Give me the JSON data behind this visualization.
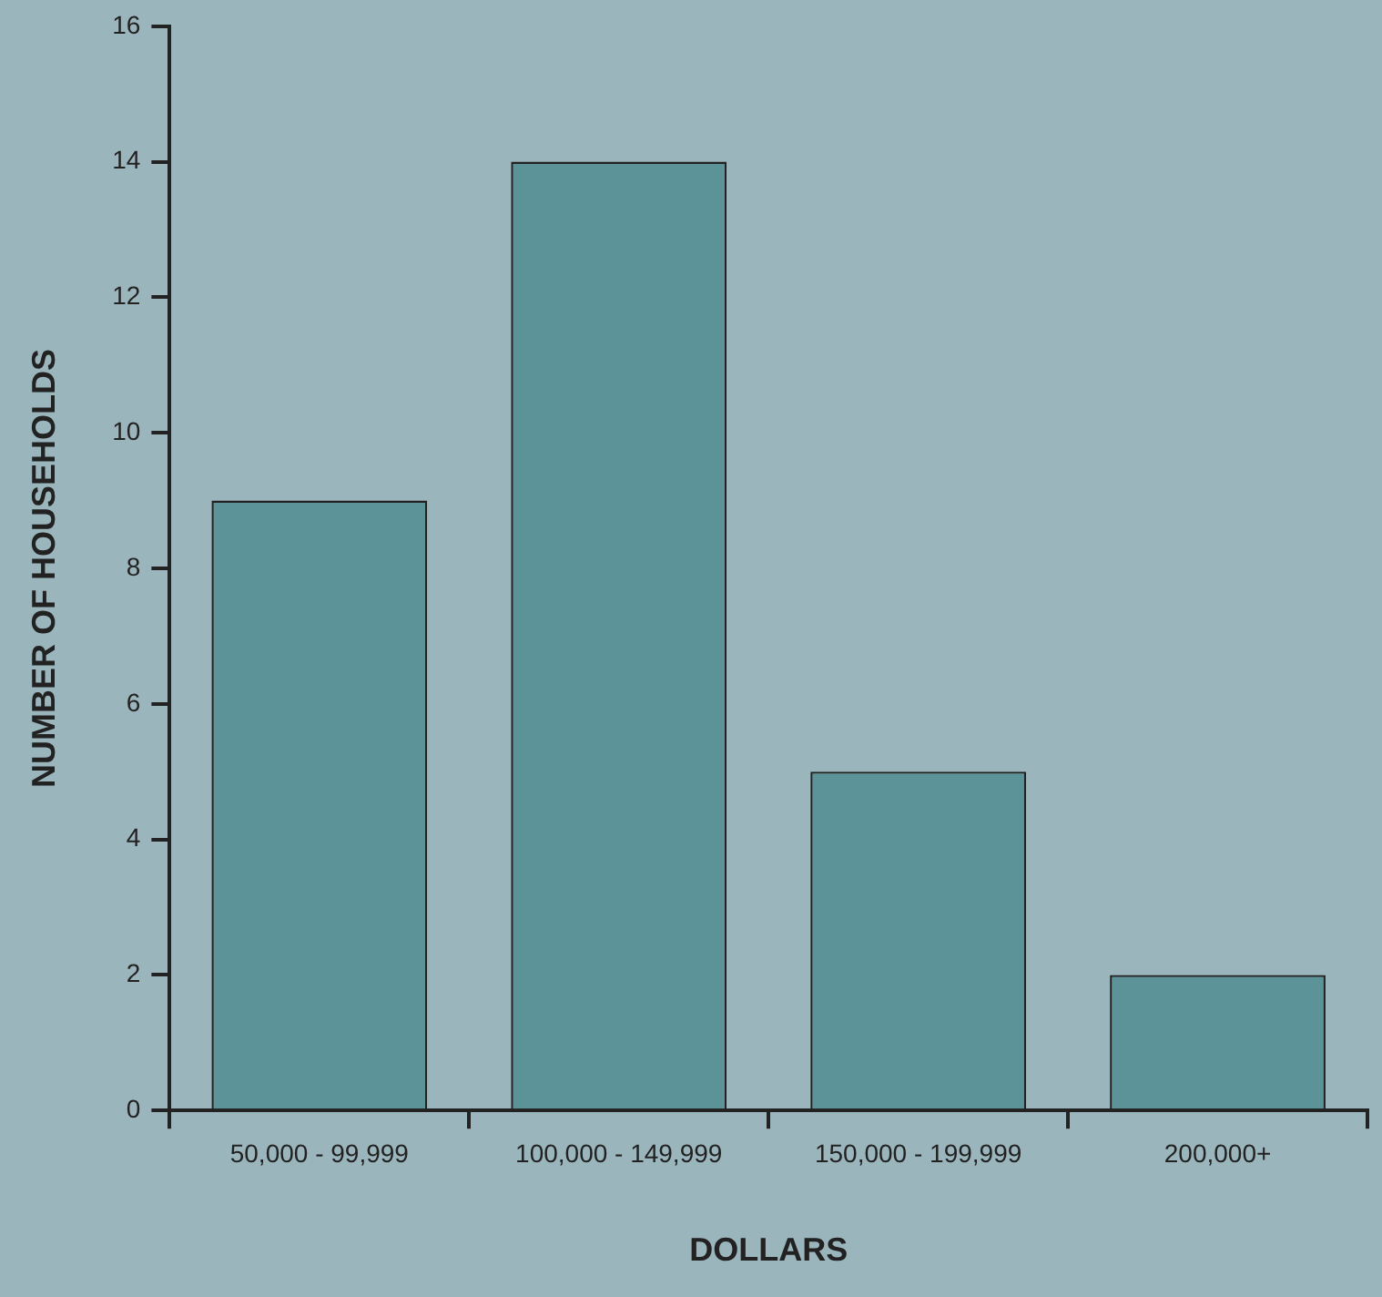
{
  "chart_data": {
    "type": "bar",
    "xlabel": "DOLLARS",
    "ylabel": "NUMBER OF HOUSEHOLDS",
    "categories": [
      "50,000 - 99,999",
      "100,000 - 149,999",
      "150,000 - 199,999",
      "200,000+"
    ],
    "values": [
      9,
      14,
      5,
      2
    ],
    "color": "#5b9399",
    "ylim": [
      0,
      16
    ],
    "yticks": [
      0,
      2,
      4,
      6,
      8,
      10,
      12,
      14,
      16
    ],
    "grid": false,
    "legend": false
  }
}
